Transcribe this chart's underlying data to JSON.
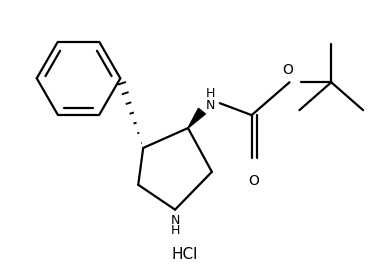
{
  "background_color": "#ffffff",
  "line_color": "#000000",
  "line_width": 1.6,
  "fig_width": 3.69,
  "fig_height": 2.8,
  "dpi": 100,
  "hcl_text": "HCl",
  "nh_ring_text": "NH",
  "nh_boc_text": "NH",
  "o_ester_text": "O",
  "o_carbonyl_text": "O"
}
